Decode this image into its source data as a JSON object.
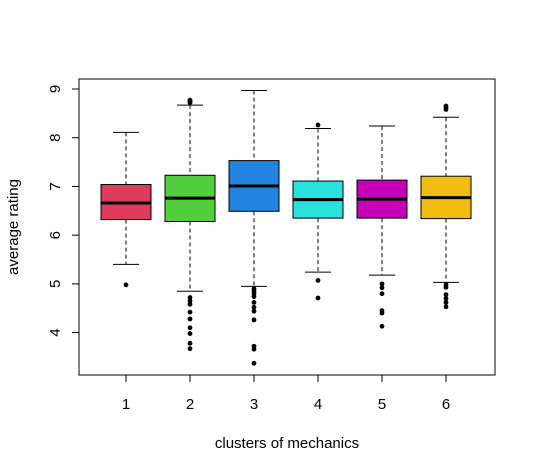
{
  "chart_data": {
    "type": "boxplot",
    "title": "",
    "xlabel": "clusters of mechanics",
    "ylabel": "average rating",
    "ylim": [
      3.15,
      9.3
    ],
    "yticks": [
      4,
      5,
      6,
      7,
      8,
      9
    ],
    "categories": [
      "1",
      "2",
      "3",
      "4",
      "5",
      "6"
    ],
    "grid": false,
    "legend": "none",
    "boxes": [
      {
        "category": "1",
        "color": "#DF3B5A",
        "whisker_low": 5.4,
        "q1": 6.32,
        "median": 6.66,
        "q3": 7.04,
        "whisker_high": 8.11,
        "outliers": [
          4.98
        ]
      },
      {
        "category": "2",
        "color": "#53CE3F",
        "whisker_low": 4.85,
        "q1": 6.28,
        "median": 6.76,
        "q3": 7.23,
        "whisker_high": 8.67,
        "outliers": [
          8.72,
          8.75,
          8.77,
          4.72,
          4.65,
          4.58,
          4.42,
          4.28,
          4.1,
          3.98,
          3.78,
          3.67
        ]
      },
      {
        "category": "3",
        "color": "#2283E0",
        "whisker_low": 4.95,
        "q1": 6.49,
        "median": 7.01,
        "q3": 7.53,
        "whisker_high": 8.97,
        "outliers": [
          4.9,
          4.85,
          4.8,
          4.74,
          4.62,
          4.52,
          4.44,
          4.26,
          3.72,
          3.66,
          3.37
        ]
      },
      {
        "category": "4",
        "color": "#29E1DD",
        "whisker_low": 5.24,
        "q1": 6.35,
        "median": 6.73,
        "q3": 7.11,
        "whisker_high": 8.19,
        "outliers": [
          8.26,
          5.07,
          4.71
        ]
      },
      {
        "category": "5",
        "color": "#C400B8",
        "whisker_low": 5.18,
        "q1": 6.35,
        "median": 6.74,
        "q3": 7.13,
        "whisker_high": 8.24,
        "outliers": [
          5.0,
          4.92,
          4.8,
          4.45,
          4.4,
          4.13
        ]
      },
      {
        "category": "6",
        "color": "#F3BC10",
        "whisker_low": 5.03,
        "q1": 6.34,
        "median": 6.77,
        "q3": 7.21,
        "whisker_high": 8.42,
        "outliers": [
          8.58,
          8.62,
          8.65,
          4.98,
          4.93,
          4.78,
          4.7,
          4.62,
          4.53
        ]
      }
    ]
  }
}
